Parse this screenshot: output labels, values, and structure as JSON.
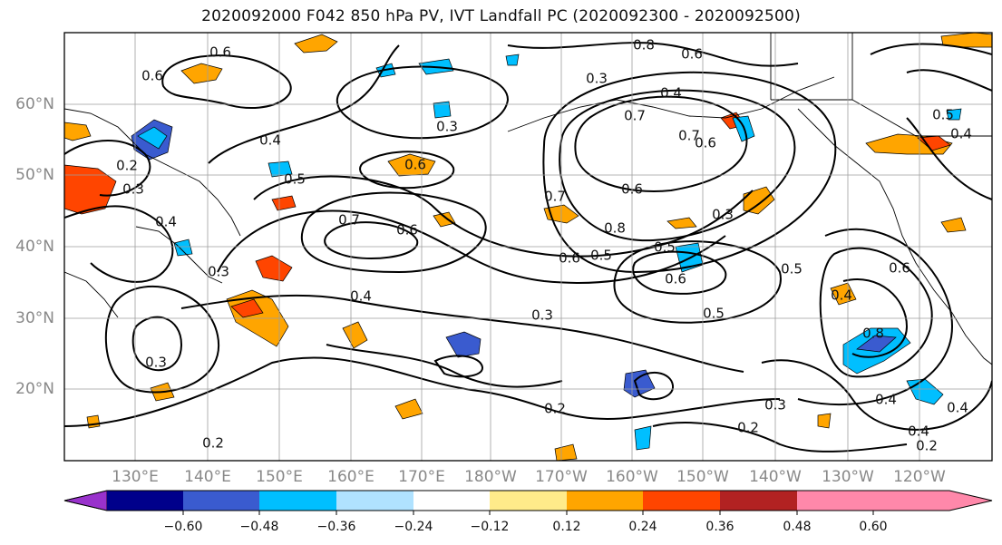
{
  "title": "2020092000 F042 850 hPa PV, IVT Landfall PC (2020092300 - 2020092500)",
  "map": {
    "lat_labels": [
      "60°N",
      "50°N",
      "40°N",
      "30°N",
      "20°N"
    ],
    "lon_labels": [
      "130°E",
      "140°E",
      "150°E",
      "160°E",
      "170°E",
      "180°W",
      "170°W",
      "160°W",
      "150°W",
      "140°W",
      "130°W",
      "120°W"
    ],
    "contour_labels": [
      "0.6",
      "0.8",
      "0.6",
      "0.3",
      "0.4",
      "0.7",
      "0.7",
      "0.6",
      "0.4",
      "0.3",
      "0.5",
      "0.6",
      "0.7",
      "0.6",
      "0.7",
      "0.6",
      "0.8",
      "0.5",
      "0.5",
      "0.6",
      "0.5",
      "0.6",
      "0.3",
      "0.5",
      "0.4",
      "0.3",
      "0.8",
      "0.6",
      "0.4",
      "0.3",
      "0.4",
      "0.2",
      "0.2",
      "0.3",
      "0.2",
      "0.4",
      "0.2",
      "0.4",
      "0.5",
      "0.4",
      "0.3",
      "0.2",
      "0.3",
      "0.4",
      "0.6"
    ]
  },
  "colorbar": {
    "tick_labels": [
      "−0.60",
      "−0.48",
      "−0.36",
      "−0.24",
      "−0.12",
      "0.12",
      "0.24",
      "0.36",
      "0.48",
      "0.60"
    ],
    "colors": [
      "#9932cc",
      "#00008b",
      "#3a5bcf",
      "#00bfff",
      "#b0e2ff",
      "#ffffff",
      "#ffeb8a",
      "#ffa500",
      "#ff4500",
      "#b22222",
      "#ff88aa"
    ]
  }
}
